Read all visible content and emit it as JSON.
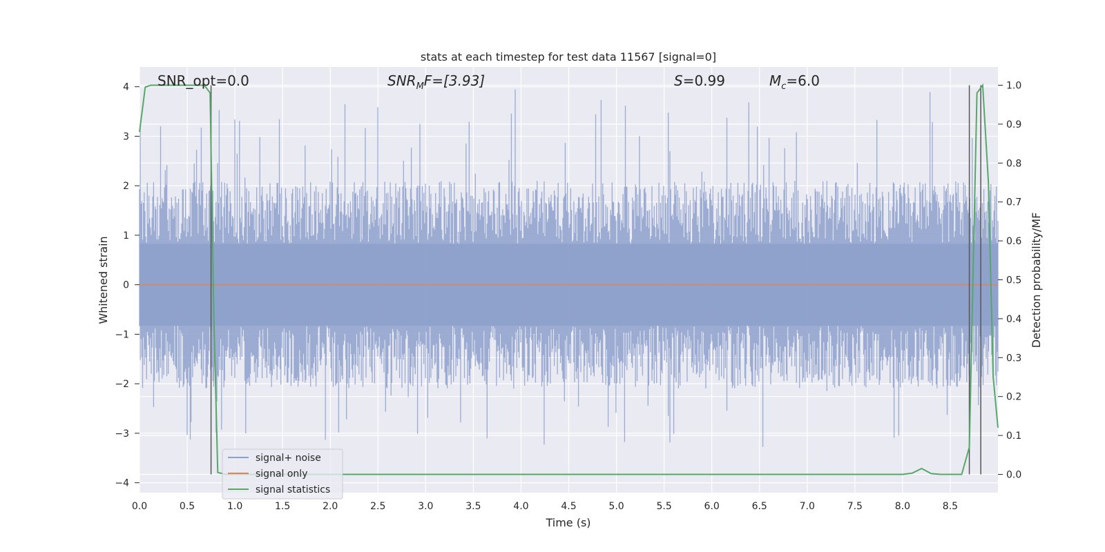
{
  "chart_data": {
    "type": "line",
    "title": "stats at each timestep for test data 11567 [signal=0]",
    "xlabel": "Time (s)",
    "ylabel": "Whitened strain",
    "ylabel_right": "Detection probability/MF",
    "xlim": [
      0.0,
      9.0
    ],
    "ylim": [
      -4.2,
      4.4
    ],
    "ylim_right": [
      -0.047,
      1.047
    ],
    "x_ticks": [
      "0.0",
      "0.5",
      "1.0",
      "1.5",
      "2.0",
      "2.5",
      "3.0",
      "3.5",
      "4.0",
      "4.5",
      "5.0",
      "5.5",
      "6.0",
      "6.5",
      "7.0",
      "7.5",
      "8.0",
      "8.5"
    ],
    "y_ticks": [
      "4",
      "3",
      "2",
      "1",
      "0",
      "−1",
      "−2",
      "−3",
      "−4"
    ],
    "y_ticks_right": [
      "1.0",
      "0.9",
      "0.8",
      "0.7",
      "0.6",
      "0.5",
      "0.4",
      "0.3",
      "0.2",
      "0.1",
      "0.0"
    ],
    "grid": true,
    "legend_position": "lower-left",
    "annotations": {
      "snr_opt": "SNR_opt=0.0",
      "snr_mf_main": "SNR",
      "snr_mf_sub": "M",
      "snr_mf_rest": "F=[3.93]",
      "s_var": "S",
      "s_rest": "=0.99",
      "mc_main": "M",
      "mc_sub": "c",
      "mc_rest": "=6.0"
    },
    "series": [
      {
        "name": "signal+ noise",
        "color": "#8da0cb",
        "envelope_approx": [
          -3.3,
          4.0
        ],
        "typical_band": [
          -1.5,
          1.5
        ]
      },
      {
        "name": "signal only",
        "color": "#dd8452",
        "values_constant": 0.0
      },
      {
        "name": "signal statistics",
        "color": "#55a868",
        "axis": "right",
        "points": [
          [
            0.0,
            0.88
          ],
          [
            0.06,
            0.995
          ],
          [
            0.12,
            1.0
          ],
          [
            0.3,
            1.0
          ],
          [
            0.5,
            1.0
          ],
          [
            0.68,
            1.0
          ],
          [
            0.74,
            0.98
          ],
          [
            0.78,
            0.4
          ],
          [
            0.82,
            0.005
          ],
          [
            0.9,
            0.0
          ],
          [
            2.0,
            0.0
          ],
          [
            4.0,
            0.0
          ],
          [
            6.0,
            0.0
          ],
          [
            8.0,
            0.0
          ],
          [
            8.1,
            0.003
          ],
          [
            8.2,
            0.015
          ],
          [
            8.3,
            0.002
          ],
          [
            8.4,
            0.0
          ],
          [
            8.62,
            0.0
          ],
          [
            8.7,
            0.07
          ],
          [
            8.78,
            0.98
          ],
          [
            8.84,
            1.0
          ],
          [
            8.9,
            0.75
          ],
          [
            8.95,
            0.25
          ],
          [
            9.0,
            0.12
          ]
        ]
      }
    ],
    "vertical_lines_x": [
      0.75,
      8.7,
      8.82
    ],
    "vline_color": "#555555"
  }
}
